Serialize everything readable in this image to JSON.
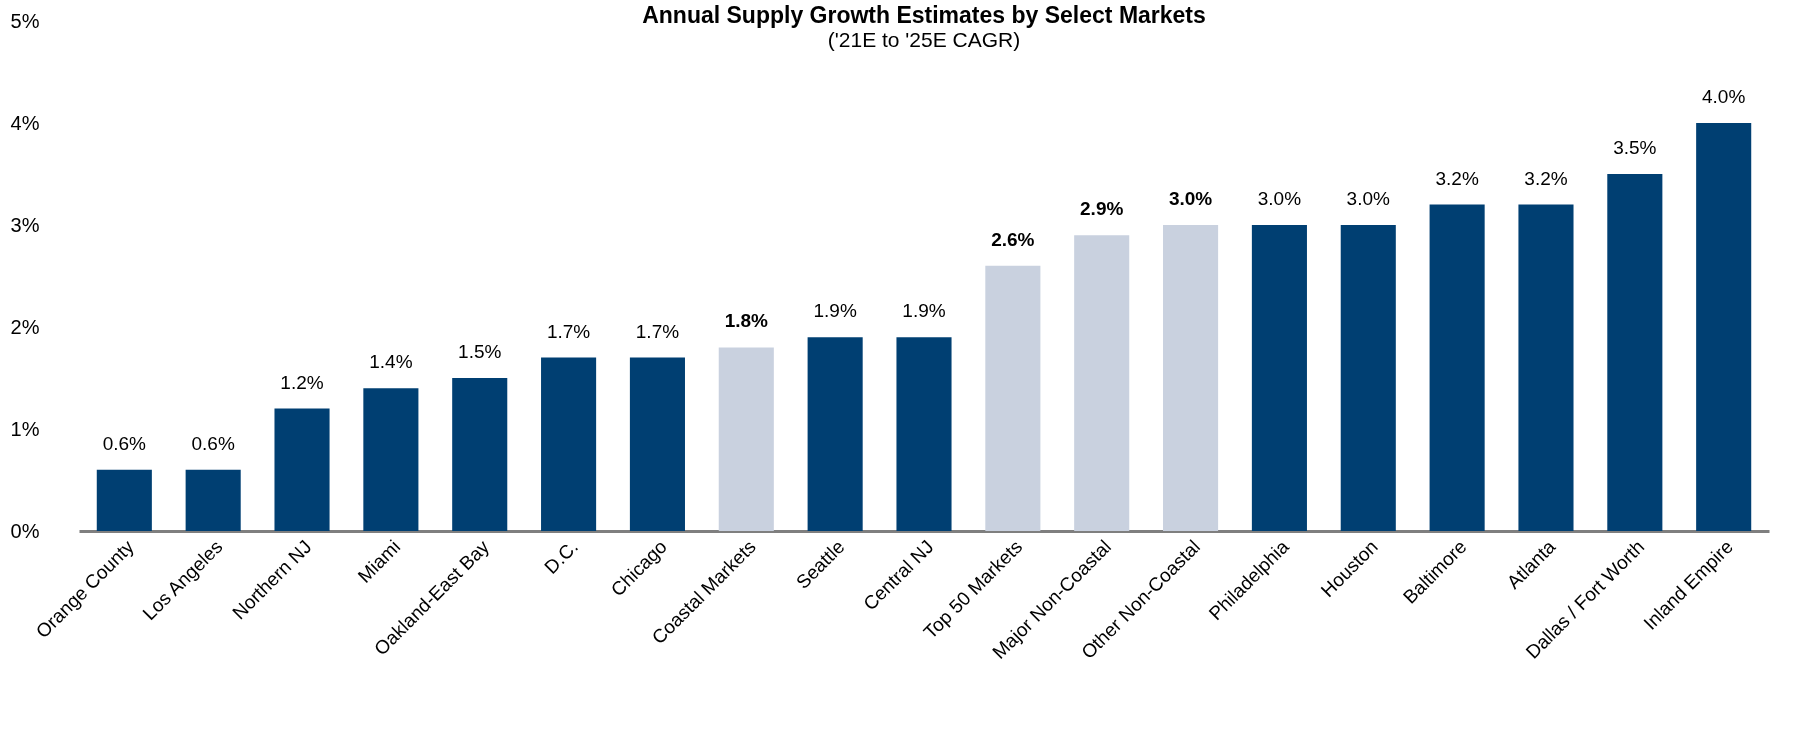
{
  "chart_data": {
    "type": "bar",
    "title": "Annual Supply Growth Estimates by Select Markets",
    "subtitle": "('21E to '25E CAGR)",
    "categories": [
      "Orange County",
      "Los Angeles",
      "Northern NJ",
      "Miami",
      "Oakland-East Bay",
      "D.C.",
      "Chicago",
      "Coastal Markets",
      "Seattle",
      "Central NJ",
      "Top 50 Markets",
      "Major Non-Coastal",
      "Other Non-Coastal",
      "Philadelphia",
      "Houston",
      "Baltimore",
      "Atlanta",
      "Dallas / Fort Worth",
      "Inland Empire"
    ],
    "values": [
      0.6,
      0.6,
      1.2,
      1.4,
      1.5,
      1.7,
      1.7,
      1.8,
      1.9,
      1.9,
      2.6,
      2.9,
      3.0,
      3.0,
      3.0,
      3.2,
      3.2,
      3.5,
      4.0
    ],
    "value_labels": [
      "0.6%",
      "0.6%",
      "1.2%",
      "1.4%",
      "1.5%",
      "1.7%",
      "1.7%",
      "1.8%",
      "1.9%",
      "1.9%",
      "2.6%",
      "2.9%",
      "3.0%",
      "3.0%",
      "3.0%",
      "3.2%",
      "3.2%",
      "3.5%",
      "4.0%"
    ],
    "colors": [
      "#003f72",
      "#003f72",
      "#003f72",
      "#003f72",
      "#003f72",
      "#003f72",
      "#003f72",
      "#c9d1df",
      "#003f72",
      "#003f72",
      "#c9d1df",
      "#c9d1df",
      "#c9d1df",
      "#003f72",
      "#003f72",
      "#003f72",
      "#003f72",
      "#003f72",
      "#003f72"
    ],
    "ylim": [
      0,
      5
    ],
    "yticks": [
      {
        "value": 0,
        "label": "0%"
      },
      {
        "value": 1,
        "label": "1%"
      },
      {
        "value": 2,
        "label": "2%"
      },
      {
        "value": 3,
        "label": "3%"
      },
      {
        "value": 4,
        "label": "4%"
      },
      {
        "value": 5,
        "label": "5%"
      }
    ],
    "grid": false
  }
}
